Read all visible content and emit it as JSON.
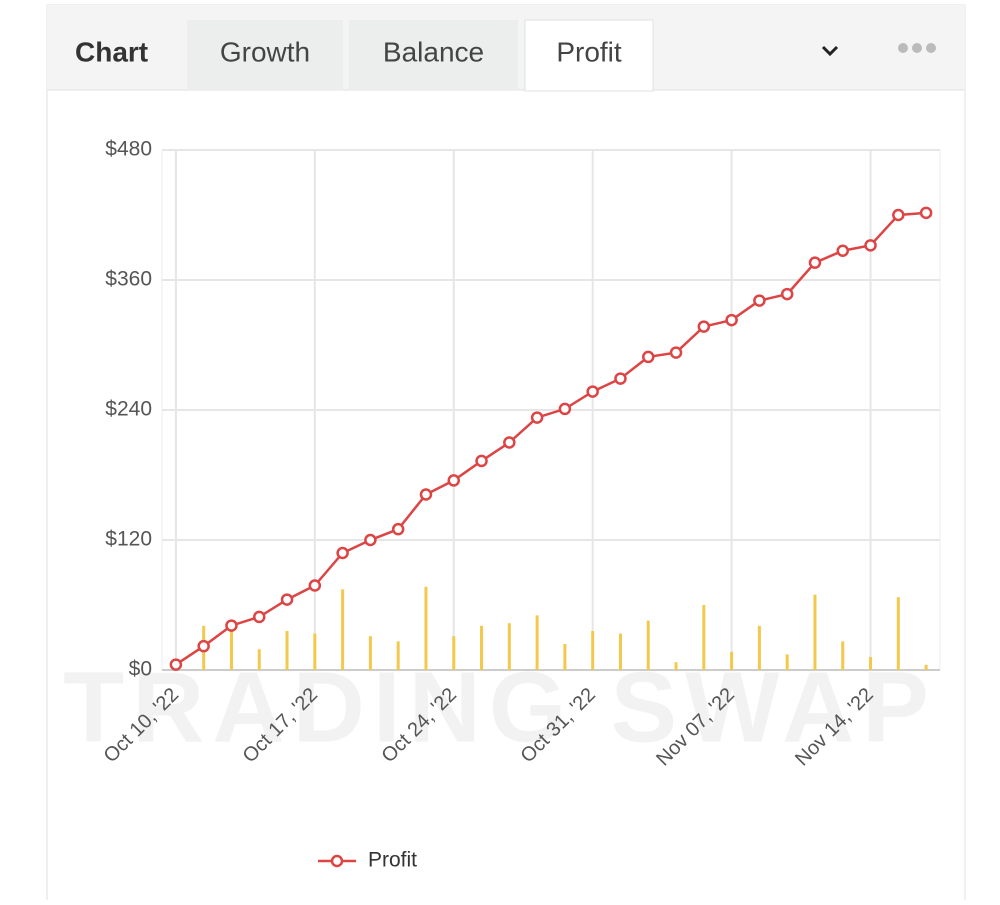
{
  "tabs": {
    "heading": "Chart",
    "items": [
      "Growth",
      "Balance",
      "Profit"
    ],
    "active": 2
  },
  "watermark": "TRADING SWAP",
  "chart_data": {
    "type": "line",
    "categories": [
      "Oct 10, '22",
      null,
      null,
      null,
      null,
      "Oct 17, '22",
      null,
      null,
      null,
      null,
      "Oct 24, '22",
      null,
      null,
      null,
      null,
      "Oct 31, '22",
      null,
      null,
      null,
      null,
      "Nov 07, '22",
      null,
      null,
      null,
      null,
      "Nov 14, '22",
      null,
      null
    ],
    "series": [
      {
        "name": "Profit",
        "type": "line",
        "color": "#dd4444",
        "values": [
          5,
          22,
          41,
          49,
          65,
          78,
          108,
          120,
          130,
          162,
          175,
          193,
          210,
          233,
          241,
          257,
          269,
          289,
          293,
          317,
          323,
          341,
          347,
          376,
          387,
          392,
          420,
          422
        ]
      },
      {
        "type": "bar",
        "color": "#f2c94c",
        "axis": "y2",
        "values": [
          0,
          17,
          15,
          8,
          15,
          14,
          31,
          13,
          11,
          32,
          13,
          17,
          18,
          21,
          10,
          15,
          14,
          19,
          3,
          25,
          7,
          17,
          6,
          29,
          11,
          5,
          28,
          2
        ]
      }
    ],
    "ylim": [
      0,
      480
    ],
    "yticks": [
      {
        "value": 0,
        "label": "$0"
      },
      {
        "value": 120,
        "label": "$120"
      },
      {
        "value": 240,
        "label": "$240"
      },
      {
        "value": 360,
        "label": "$360"
      },
      {
        "value": 480,
        "label": "$480"
      }
    ],
    "y2lim": [
      0,
      200
    ],
    "grid": true,
    "legend": "bottom"
  }
}
